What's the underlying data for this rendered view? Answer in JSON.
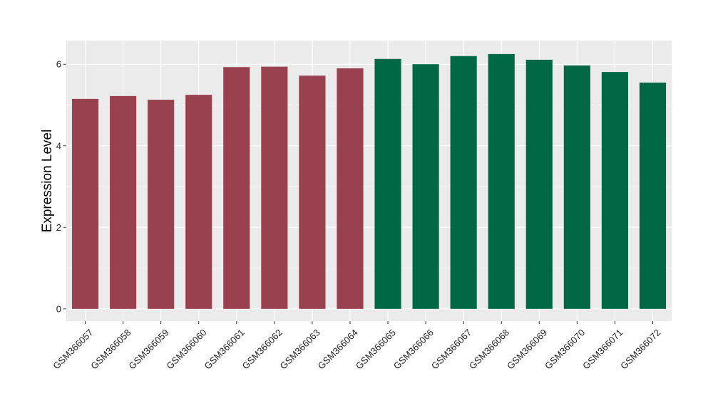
{
  "chart_data": {
    "type": "bar",
    "title": "",
    "xlabel": "",
    "ylabel": "Expression Level",
    "categories": [
      "GSM366057",
      "GSM366058",
      "GSM366059",
      "GSM366060",
      "GSM366061",
      "GSM366062",
      "GSM366063",
      "GSM366064",
      "GSM366065",
      "GSM366066",
      "GSM366067",
      "GSM366068",
      "GSM366069",
      "GSM366070",
      "GSM366071",
      "GSM366072"
    ],
    "values": [
      5.15,
      5.22,
      5.13,
      5.25,
      5.93,
      5.94,
      5.72,
      5.9,
      6.13,
      6.0,
      6.2,
      6.25,
      6.11,
      5.97,
      5.81,
      5.55
    ],
    "bar_colors": [
      "#99414f",
      "#99414f",
      "#99414f",
      "#99414f",
      "#99414f",
      "#99414f",
      "#99414f",
      "#99414f",
      "#006845",
      "#006845",
      "#006845",
      "#006845",
      "#006845",
      "#006845",
      "#006845",
      "#006845"
    ],
    "yticks": [
      0,
      2,
      4,
      6
    ],
    "ytick_labels": [
      "0",
      "2",
      "4",
      "6"
    ],
    "ylim": [
      -0.3,
      6.58
    ],
    "grid": true,
    "legend": "none",
    "colors": {
      "panel_background": "#ebebeb",
      "gridline": "#ffffff"
    }
  }
}
